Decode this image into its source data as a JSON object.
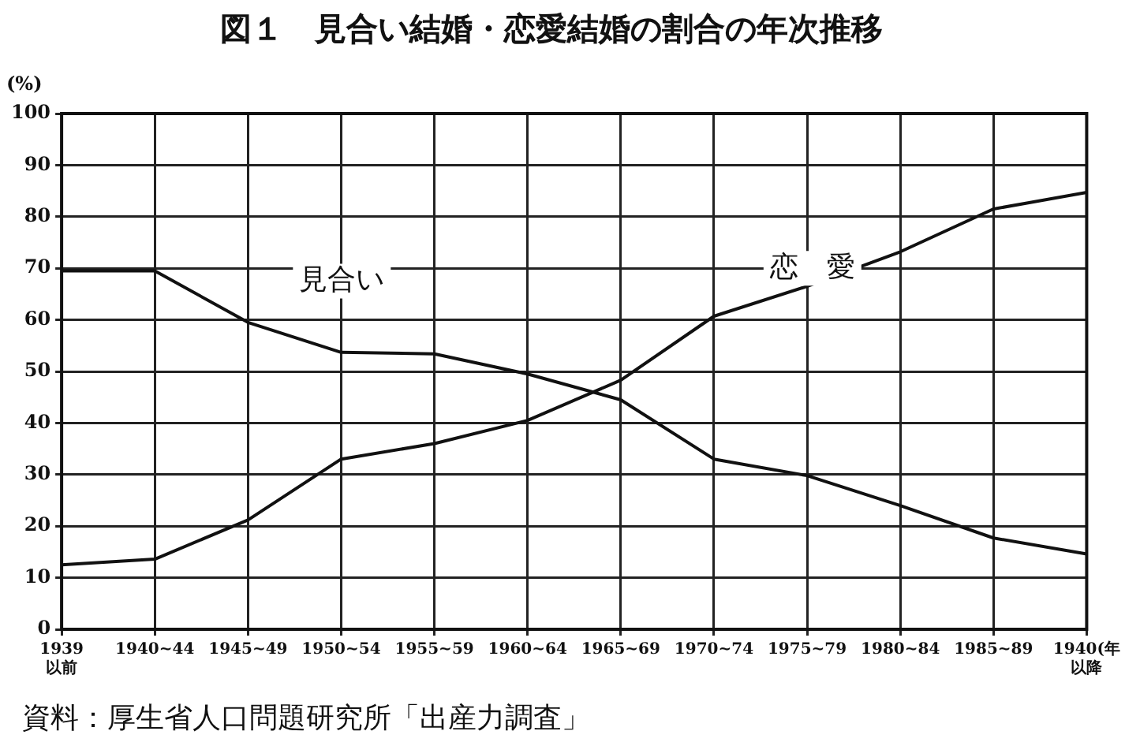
{
  "chart_data": {
    "type": "line",
    "title": "図１　見合い結婚・恋愛結婚の割合の年次推移",
    "ylabel": "(%)",
    "categories": [
      "1939以前",
      "1940~44",
      "1945~49",
      "1950~54",
      "1955~59",
      "1960~64",
      "1965~69",
      "1970~74",
      "1975~79",
      "1980~84",
      "1985~89",
      "1940(年以降"
    ],
    "series": [
      {
        "name": "見合い",
        "color": "#111111",
        "values": [
          69.5,
          69.5,
          59.5,
          53.7,
          53.4,
          49.5,
          44.5,
          33,
          29.8,
          24,
          17.7,
          14.6
        ]
      },
      {
        "name": "恋　愛",
        "color": "#111111",
        "values": [
          12.5,
          13.6,
          21.2,
          33,
          36,
          40.5,
          48.3,
          60.7,
          66.5,
          73.2,
          81.5,
          84.7
        ]
      }
    ],
    "ylim": [
      0,
      100
    ],
    "yticks": [
      0,
      10,
      20,
      30,
      40,
      50,
      60,
      70,
      80,
      90,
      100
    ],
    "grid": true,
    "legend": false,
    "marker": "none",
    "line_style": "solid",
    "annotations": [
      "資料：厚生省人口問題研究所「出産力調査」"
    ]
  }
}
